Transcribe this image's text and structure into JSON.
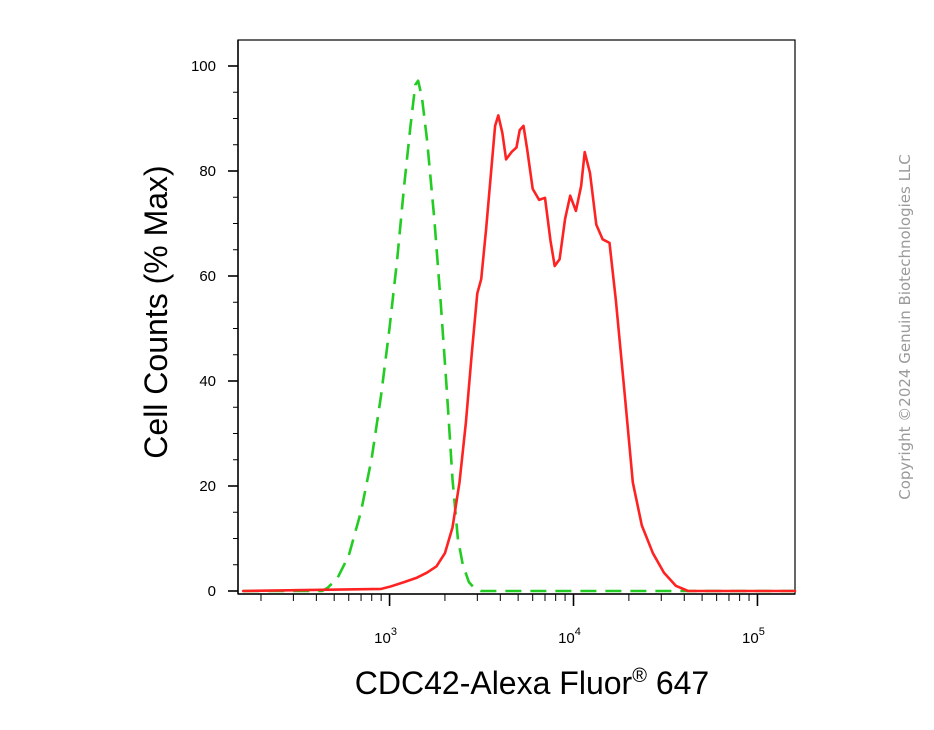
{
  "copyright": "Copyright ©2024 Genuin Biotechnologies LLC",
  "chart_data": {
    "type": "line",
    "title": "",
    "xlabel": "CDC42-Alexa Fluor",
    "xlabel_superscript": "®",
    "xlabel_suffix": " 647",
    "ylabel": "Cell Counts (% Max)",
    "x_scale": "log",
    "xlim": [
      150,
      160000
    ],
    "ylim": [
      0,
      105
    ],
    "x_ticks": [
      {
        "value": 1000,
        "base": "10",
        "exp": "3"
      },
      {
        "value": 10000,
        "base": "10",
        "exp": "4"
      },
      {
        "value": 100000,
        "base": "10",
        "exp": "5"
      }
    ],
    "y_ticks": [
      0,
      20,
      40,
      60,
      80,
      100
    ],
    "grid": false,
    "legend": "none",
    "series": [
      {
        "color": "#22cc22",
        "dash": "dashed",
        "points": [
          [
            160,
            0
          ],
          [
            430,
            0
          ],
          [
            460,
            0.6
          ],
          [
            520,
            2.4
          ],
          [
            600,
            6.7
          ],
          [
            700,
            15.2
          ],
          [
            800,
            25.3
          ],
          [
            900,
            37.3
          ],
          [
            1000,
            50.2
          ],
          [
            1100,
            63.2
          ],
          [
            1200,
            77.1
          ],
          [
            1300,
            88.6
          ],
          [
            1380,
            96.4
          ],
          [
            1430,
            97.2
          ],
          [
            1500,
            94.1
          ],
          [
            1600,
            85.8
          ],
          [
            1750,
            70.9
          ],
          [
            1900,
            54.7
          ],
          [
            2050,
            38.0
          ],
          [
            2200,
            21.3
          ],
          [
            2350,
            10.1
          ],
          [
            2500,
            5.0
          ],
          [
            2700,
            1.7
          ],
          [
            2900,
            0.5
          ],
          [
            3150,
            0
          ],
          [
            160000,
            0
          ]
        ]
      },
      {
        "color": "#ff2222",
        "dash": "solid",
        "points": [
          [
            160,
            0
          ],
          [
            900,
            0.4
          ],
          [
            1000,
            0.8
          ],
          [
            1200,
            1.7
          ],
          [
            1400,
            2.5
          ],
          [
            1600,
            3.5
          ],
          [
            1800,
            4.7
          ],
          [
            2000,
            7.2
          ],
          [
            2200,
            12.1
          ],
          [
            2400,
            20.7
          ],
          [
            2600,
            32.1
          ],
          [
            2800,
            45.3
          ],
          [
            3000,
            56.7
          ],
          [
            3150,
            59.4
          ],
          [
            3350,
            68.9
          ],
          [
            3550,
            79.2
          ],
          [
            3750,
            88.6
          ],
          [
            3900,
            90.6
          ],
          [
            4100,
            87.3
          ],
          [
            4300,
            82.2
          ],
          [
            4600,
            83.6
          ],
          [
            4900,
            84.5
          ],
          [
            5100,
            87.8
          ],
          [
            5350,
            88.6
          ],
          [
            5600,
            84.1
          ],
          [
            6000,
            76.6
          ],
          [
            6500,
            74.5
          ],
          [
            7000,
            74.9
          ],
          [
            7500,
            66.7
          ],
          [
            7900,
            61.9
          ],
          [
            8400,
            63.2
          ],
          [
            9000,
            70.9
          ],
          [
            9600,
            75.3
          ],
          [
            10300,
            72.4
          ],
          [
            11000,
            77.1
          ],
          [
            11500,
            83.6
          ],
          [
            12300,
            79.6
          ],
          [
            13300,
            69.8
          ],
          [
            14400,
            67.0
          ],
          [
            15700,
            66.3
          ],
          [
            17000,
            55.3
          ],
          [
            19000,
            37.3
          ],
          [
            21000,
            20.7
          ],
          [
            23500,
            12.5
          ],
          [
            27000,
            7.2
          ],
          [
            31000,
            3.5
          ],
          [
            36000,
            1.0
          ],
          [
            42000,
            0
          ],
          [
            160000,
            0
          ]
        ]
      }
    ]
  }
}
